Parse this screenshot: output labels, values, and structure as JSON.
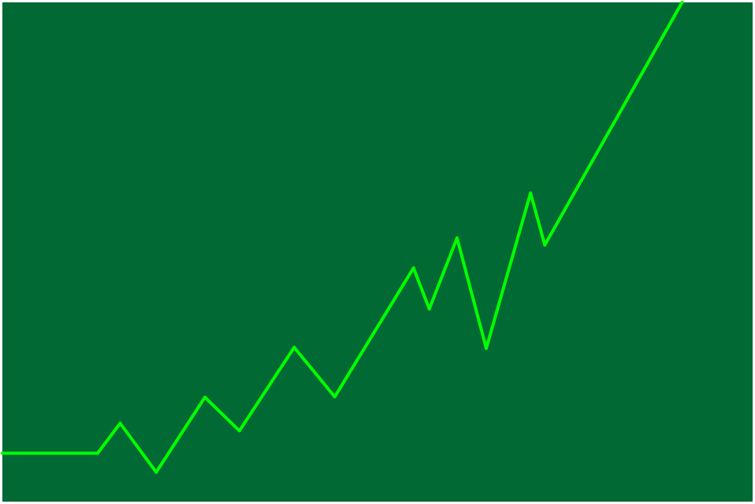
{
  "colors": {
    "background": "#ffffff",
    "plot_area": "#016934",
    "line": "#00ff00"
  },
  "chart_data": {
    "type": "line",
    "title": "",
    "xlabel": "",
    "ylabel": "",
    "grid": false,
    "legend": "none",
    "xlim": [
      0,
      100
    ],
    "ylim": [
      0,
      100
    ],
    "series": [
      {
        "x": [
          0,
          12.7,
          15.7,
          20.5,
          27.0,
          31.6,
          38.9,
          44.3,
          54.8,
          56.9,
          60.6,
          64.5,
          70.4,
          72.3,
          90.6
        ],
        "y": [
          9.7,
          9.7,
          15.7,
          5.9,
          20.9,
          14.2,
          30.9,
          21.0,
          46.8,
          38.6,
          52.8,
          30.7,
          61.8,
          51.4,
          100
        ]
      }
    ]
  }
}
